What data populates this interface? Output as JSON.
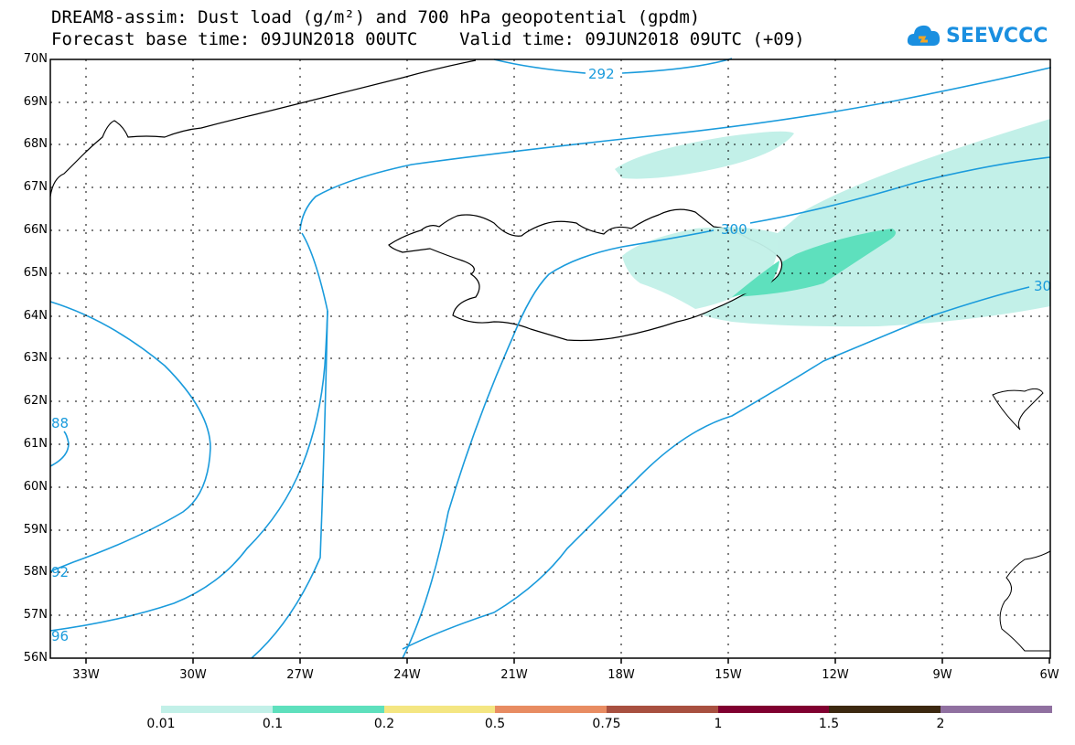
{
  "title": {
    "line1": "DREAM8-assim: Dust load (g/m²) and 700 hPa geopotential (gpdm)",
    "line2": "Forecast base time: 09JUN2018 00UTC    Valid time: 09JUN2018 09UTC (+09)"
  },
  "logo": {
    "text": "SEEVCCC",
    "icon": "cloud-icon"
  },
  "map": {
    "lat_labels": [
      "70N",
      "69N",
      "68N",
      "67N",
      "66N",
      "65N",
      "64N",
      "63N",
      "62N",
      "61N",
      "60N",
      "59N",
      "58N",
      "57N",
      "56N"
    ],
    "lon_labels": [
      "33W",
      "30W",
      "27W",
      "24W",
      "21W",
      "18W",
      "15W",
      "12W",
      "9W",
      "6W"
    ],
    "contour_labels": [
      "292",
      "300",
      "30",
      "88",
      "92",
      "96"
    ]
  },
  "colorbar": {
    "labels": [
      "0.01",
      "0.1",
      "0.2",
      "0.5",
      "0.75",
      "1",
      "1.5",
      "2"
    ],
    "colors": [
      "#c2f0e8",
      "#5ee0bd",
      "#f4e682",
      "#e88c62",
      "#a85040",
      "#800030",
      "#3c2810",
      "#9070a0"
    ]
  }
}
